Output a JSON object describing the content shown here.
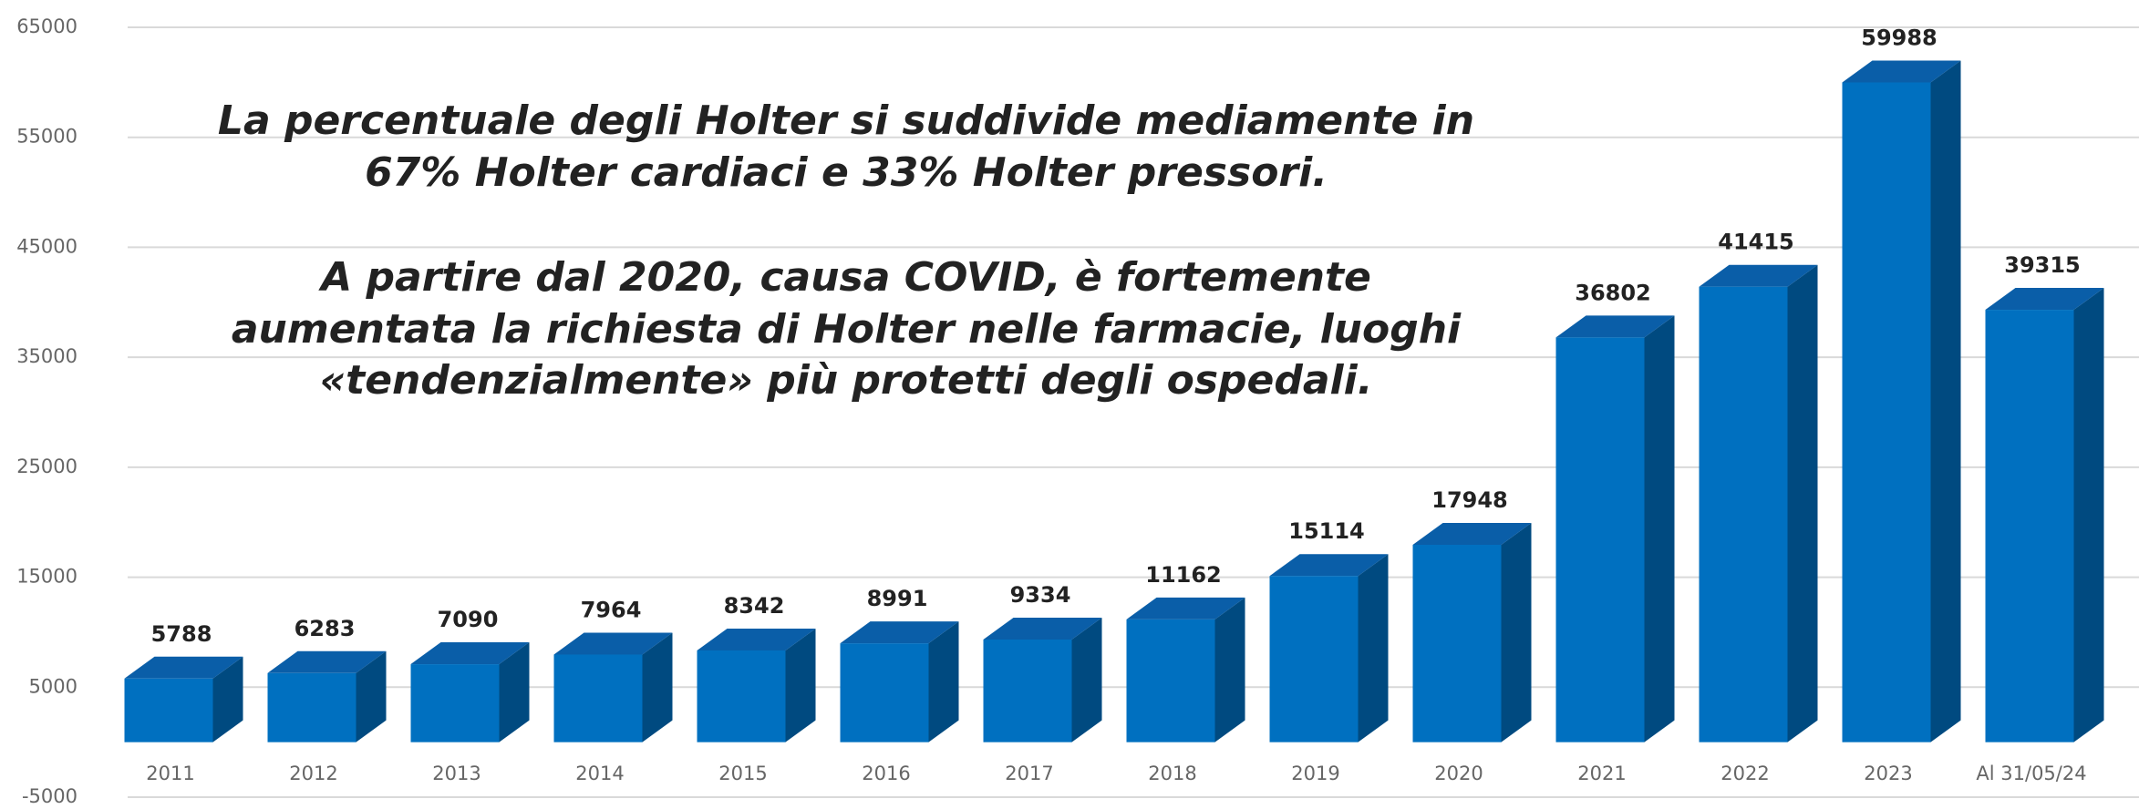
{
  "chart_data": {
    "type": "bar",
    "annotations": [
      [
        "La percentuale degli Holter si suddivide mediamente in",
        "67% Holter cardiaci e 33% Holter pressori."
      ],
      [
        "A partire dal 2020, causa COVID, è fortemente",
        "aumentata la richiesta di Holter nelle farmacie, luoghi",
        "«tendenzialmente» più protetti degli ospedali."
      ]
    ],
    "categories": [
      "2011",
      "2012",
      "2013",
      "2014",
      "2015",
      "2016",
      "2017",
      "2018",
      "2019",
      "2020",
      "2021",
      "2022",
      "2023",
      "Al 31/05/24"
    ],
    "values": [
      5788,
      6283,
      7090,
      7964,
      8342,
      8991,
      9334,
      11162,
      15114,
      17948,
      36802,
      41415,
      59988,
      39315
    ],
    "color": "#0070c0",
    "ylim": [
      -5000,
      65000
    ],
    "yticks": [
      -5000,
      5000,
      15000,
      25000,
      35000,
      45000,
      55000,
      65000
    ],
    "grid": true
  }
}
